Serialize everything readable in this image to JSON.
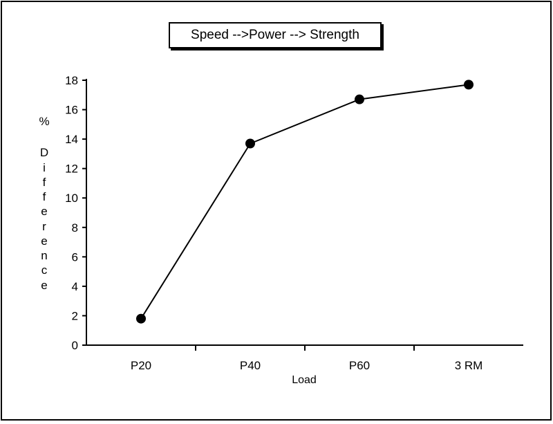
{
  "chart_data": {
    "type": "line",
    "title": "Speed -->Power --> Strength",
    "xlabel": "Load",
    "ylabel": "% Difference",
    "ylabel_lines": [
      "%",
      "D",
      "i",
      "f",
      "f",
      "e",
      "r",
      "e",
      "n",
      "c",
      "e"
    ],
    "categories": [
      "P20",
      "P40",
      "P60",
      "3 RM"
    ],
    "values": [
      1.8,
      13.7,
      16.7,
      17.7
    ],
    "ylim": [
      0,
      18
    ],
    "yticks": [
      0,
      2,
      4,
      6,
      8,
      10,
      12,
      14,
      16,
      18
    ],
    "grid": false,
    "legend": "none",
    "colors": {
      "line": "#000000",
      "marker": "#000000",
      "axis": "#000000",
      "frame": "#000000"
    }
  }
}
